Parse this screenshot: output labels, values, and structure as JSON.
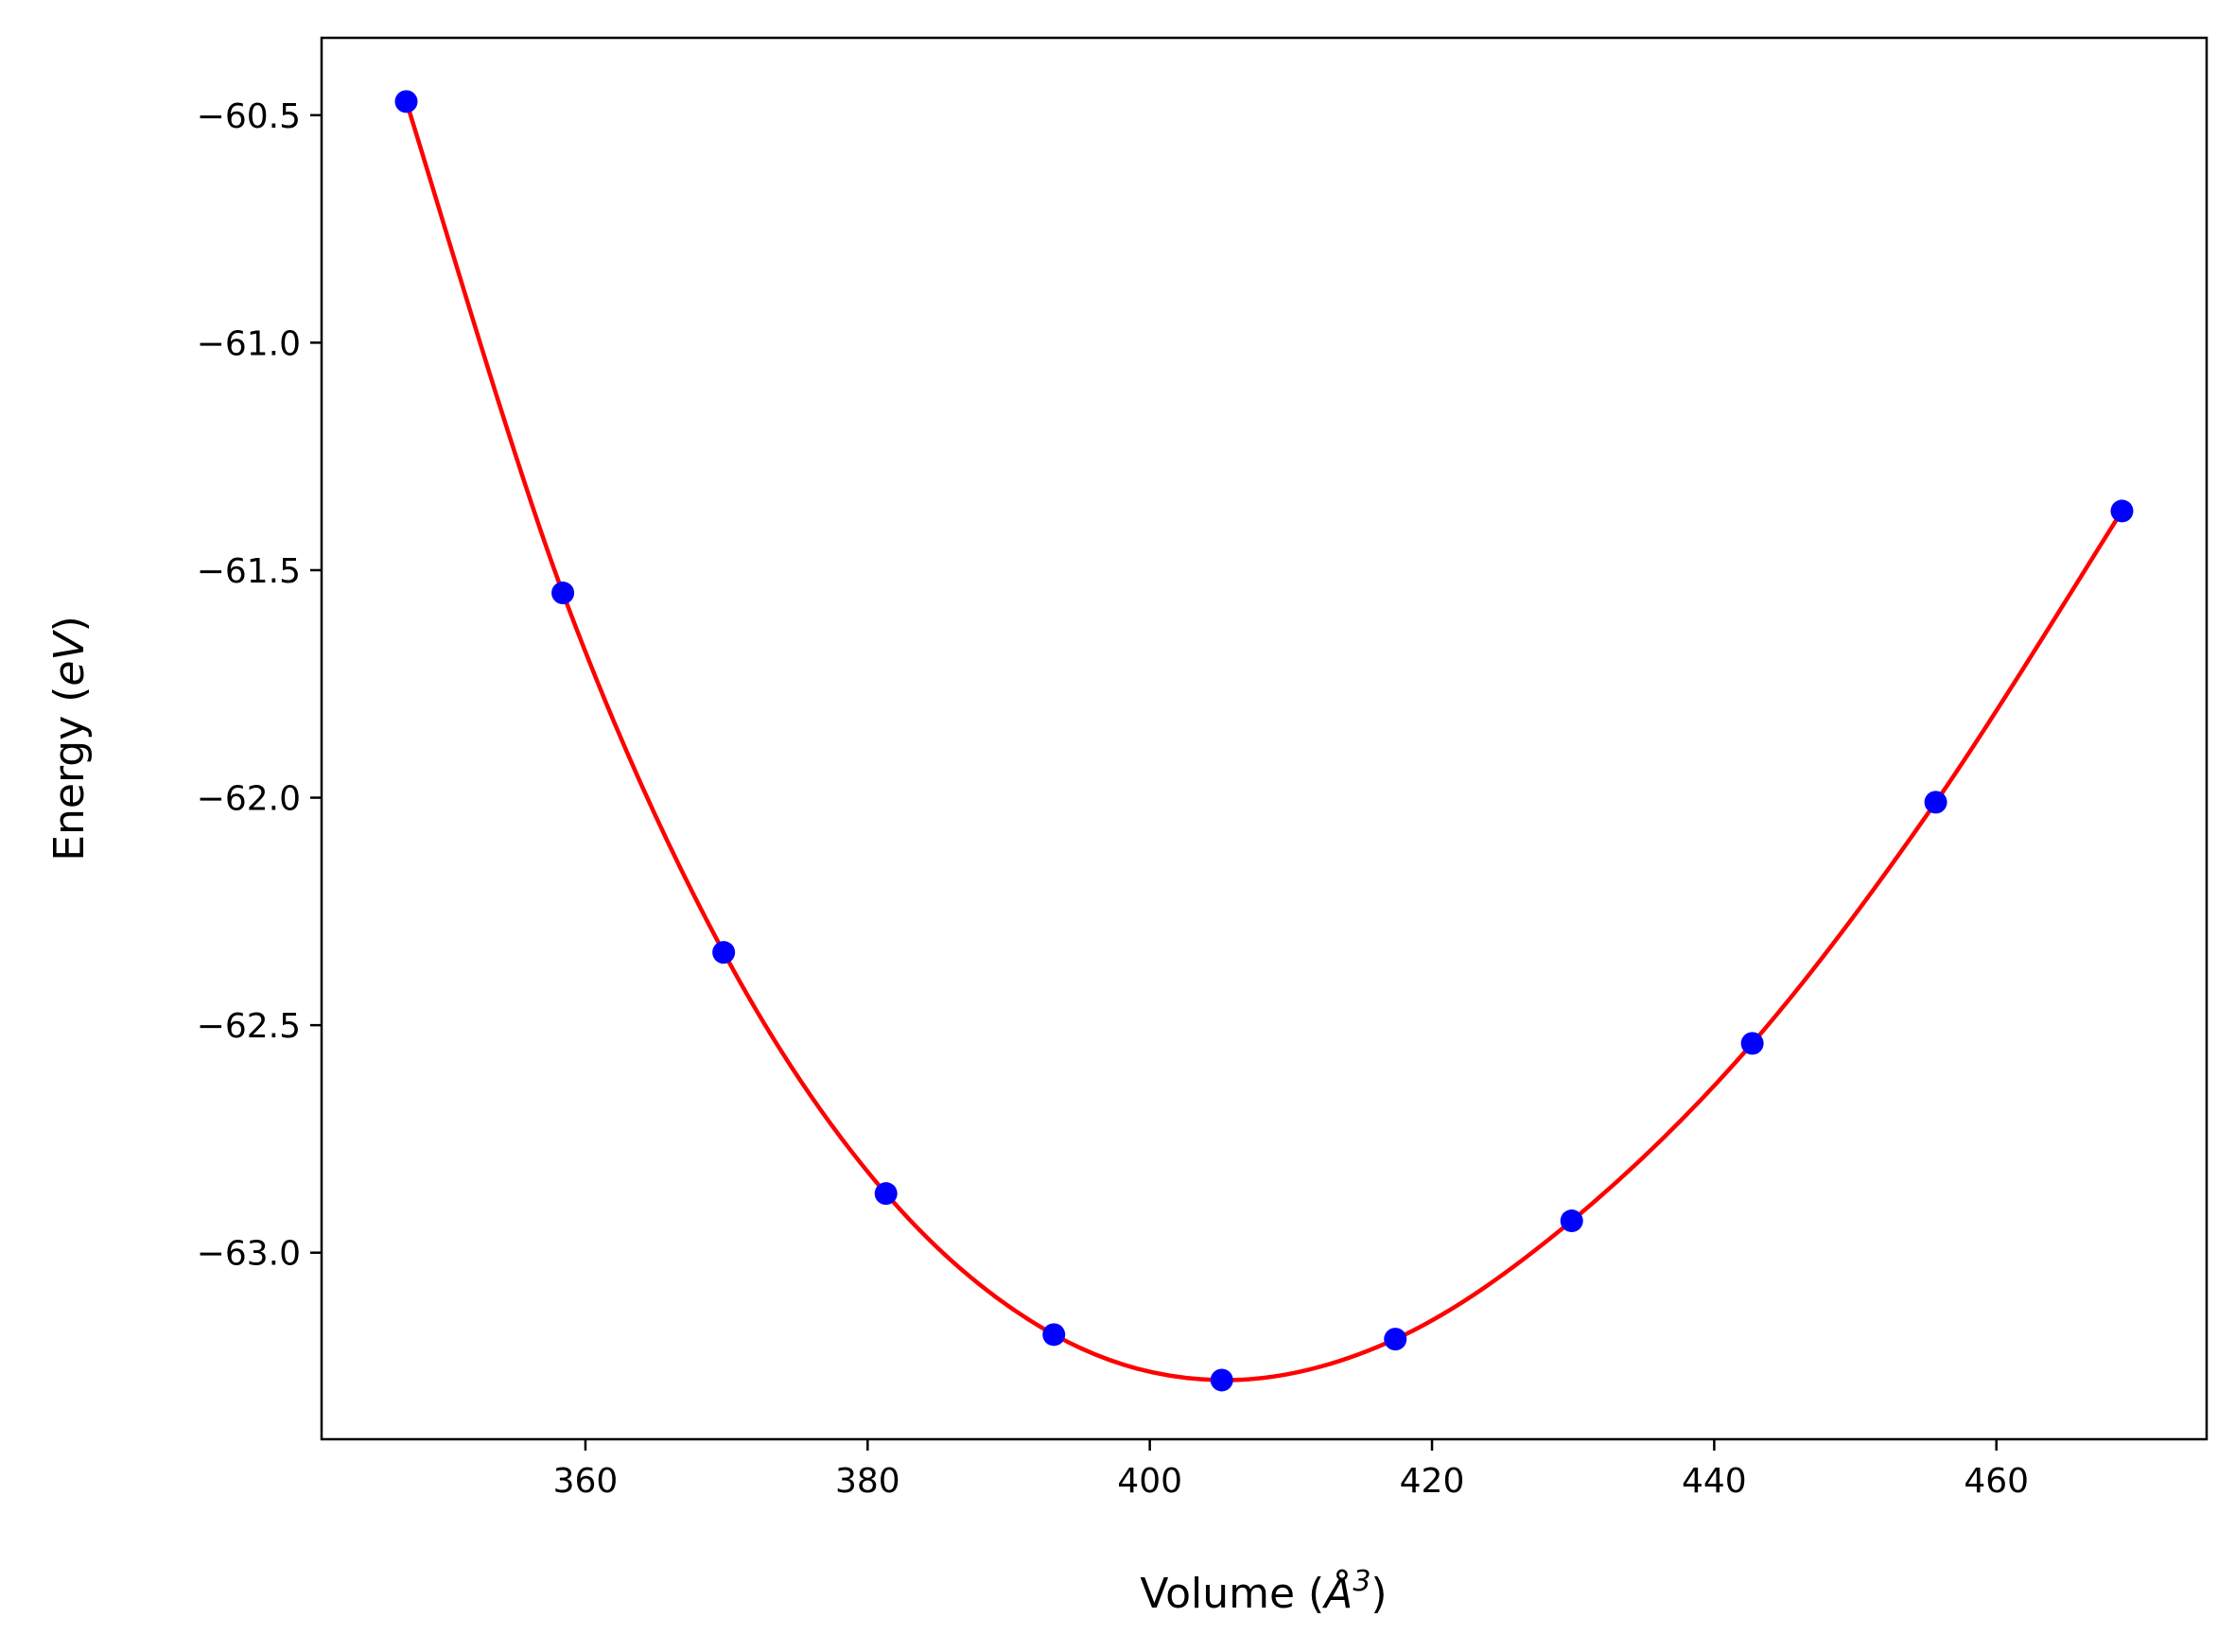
{
  "chart_data": {
    "type": "scatter",
    "title": "",
    "xlabel": "Volume (",
    "xlabel_symbol": "Å",
    "xlabel_sup": "3",
    "xlabel_close": ")",
    "ylabel": "Energy (",
    "ylabel_unit": "eV",
    "ylabel_close": ")",
    "xlim": [
      341.3,
      474.9
    ],
    "ylim": [
      -63.41,
      -60.33
    ],
    "xticks": [
      360,
      380,
      400,
      420,
      440,
      460
    ],
    "xtick_labels": [
      "360",
      "380",
      "400",
      "420",
      "440",
      "460"
    ],
    "yticks": [
      -60.5,
      -61.0,
      -61.5,
      -62.0,
      -62.5,
      -63.0
    ],
    "ytick_labels": [
      "−60.5",
      "−61.0",
      "−61.5",
      "−62.0",
      "−62.5",
      "−63.0"
    ],
    "grid": false,
    "legend": "none",
    "series": [
      {
        "kind": "points",
        "color": "#0000ff",
        "x": [
          347.3,
          358.4,
          369.8,
          381.3,
          393.2,
          405.1,
          417.4,
          429.9,
          442.7,
          455.7,
          468.9
        ],
        "y": [
          -60.47,
          -61.55,
          -62.34,
          -62.87,
          -63.18,
          -63.28,
          -63.19,
          -62.93,
          -62.54,
          -62.01,
          -61.37
        ]
      },
      {
        "kind": "fit-line",
        "color": "#ff0000",
        "x": [
          347.3,
          358.4,
          369.8,
          381.3,
          393.2,
          405.1,
          417.4,
          429.9,
          442.7,
          455.7,
          468.9
        ],
        "y": [
          -60.47,
          -61.55,
          -62.34,
          -62.87,
          -63.18,
          -63.28,
          -63.19,
          -62.93,
          -62.54,
          -62.01,
          -61.37
        ]
      }
    ]
  }
}
